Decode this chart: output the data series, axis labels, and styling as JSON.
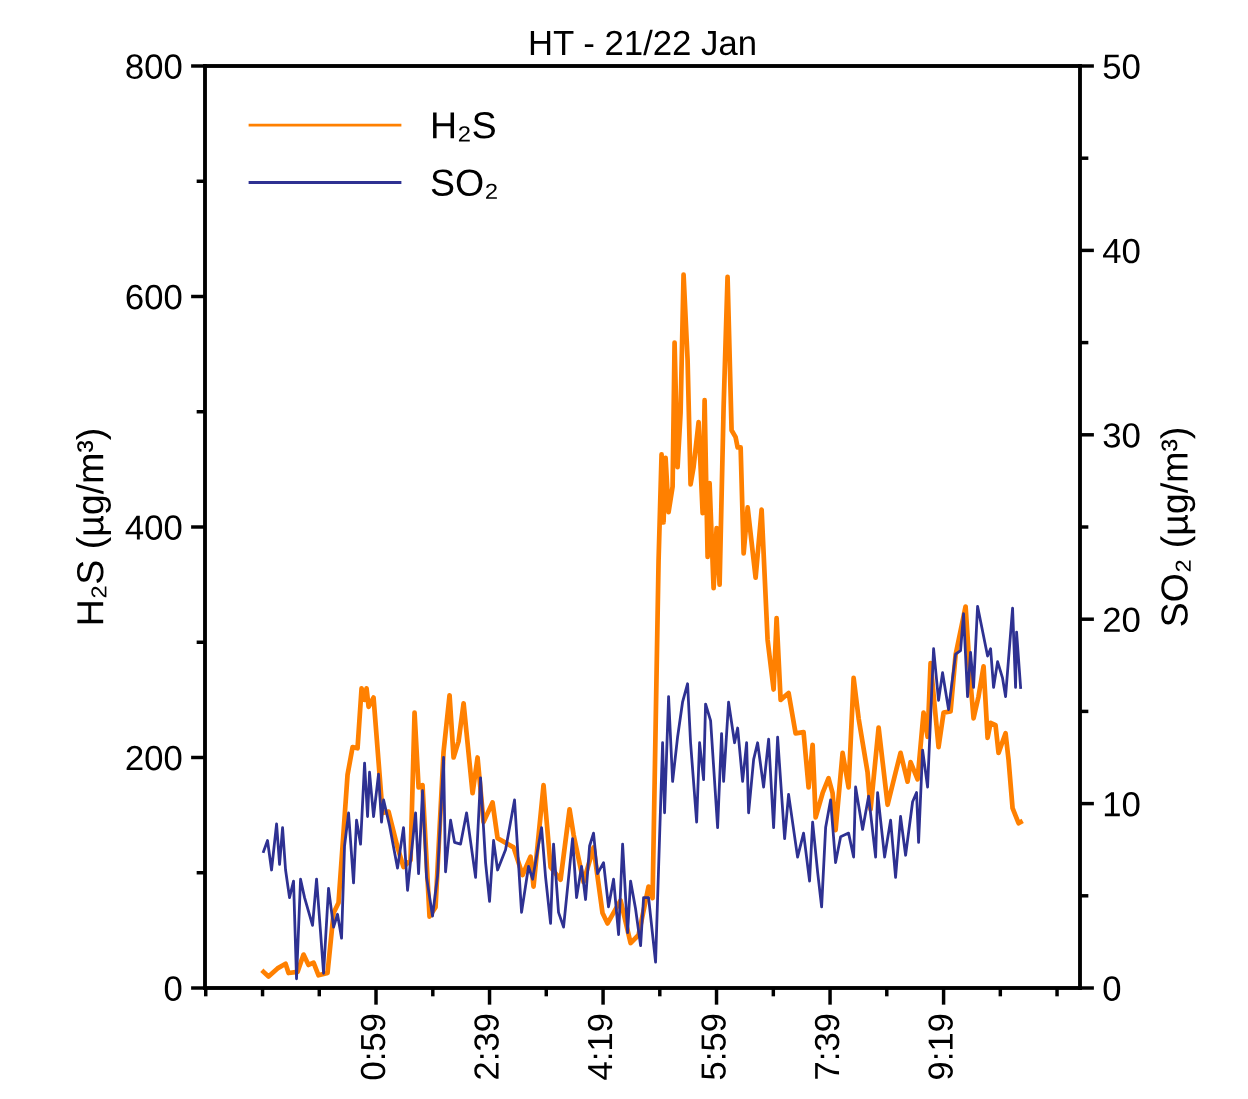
{
  "chart_data": {
    "type": "line",
    "title": "HT - 21/22 Jan",
    "ylabel": "H₂S (µg/m³)",
    "y2label": "SO₂ (µg/m³)",
    "xlim": [
      -1.528,
      11.32
    ],
    "xticks": [
      {
        "value": -1.517,
        "label": null
      },
      {
        "value": -0.683,
        "label": null
      },
      {
        "value": 0.15,
        "label": null
      },
      {
        "value": 0.983,
        "label": "0:59"
      },
      {
        "value": 1.817,
        "label": null
      },
      {
        "value": 2.65,
        "label": "2:39"
      },
      {
        "value": 3.483,
        "label": null
      },
      {
        "value": 4.317,
        "label": "4:19"
      },
      {
        "value": 5.15,
        "label": null
      },
      {
        "value": 5.983,
        "label": "5:59"
      },
      {
        "value": 6.817,
        "label": null
      },
      {
        "value": 7.65,
        "label": "7:39"
      },
      {
        "value": 8.483,
        "label": null
      },
      {
        "value": 9.317,
        "label": "9:19"
      },
      {
        "value": 10.15,
        "label": null
      },
      {
        "value": 10.983,
        "label": null
      }
    ],
    "ylim": [
      0,
      800
    ],
    "yticks": [
      0,
      {
        "value": 100,
        "label": null
      },
      200,
      {
        "value": 300,
        "label": null
      },
      400,
      {
        "value": 500,
        "label": null
      },
      600,
      {
        "value": 700,
        "label": null
      },
      800
    ],
    "y2lim": [
      0,
      50
    ],
    "y2ticks": [
      0,
      {
        "value": 5,
        "label": null
      },
      10,
      {
        "value": 15,
        "label": null
      },
      20,
      {
        "value": 25,
        "label": null
      },
      30,
      {
        "value": 35,
        "label": null
      },
      40,
      {
        "value": 45,
        "label": null
      },
      50
    ],
    "grid": false,
    "legend": "top left",
    "marker": "none",
    "line_style": "solid",
    "series": [
      {
        "name": "H₂S",
        "color": "#ff8000",
        "x": [
          -0.668,
          -0.595,
          -0.463,
          -0.345,
          -0.301,
          -0.169,
          -0.081,
          -0.008,
          0.066,
          0.139,
          0.271,
          0.36,
          0.433,
          0.506,
          0.565,
          0.639,
          0.712,
          0.771,
          0.815,
          0.844,
          0.874,
          0.947,
          1.079,
          1.167,
          1.299,
          1.387,
          1.49,
          1.549,
          1.608,
          1.666,
          1.769,
          1.857,
          1.975,
          2.063,
          2.122,
          2.195,
          2.269,
          2.401,
          2.474,
          2.562,
          2.694,
          2.768,
          2.856,
          3.003,
          3.135,
          3.252,
          3.296,
          3.443,
          3.546,
          3.693,
          3.825,
          3.884,
          4.03,
          4.177,
          4.309,
          4.383,
          4.574,
          4.721,
          4.838,
          4.985,
          5.044,
          5.132,
          5.176,
          5.205,
          5.235,
          5.279,
          5.338,
          5.367,
          5.411,
          5.455,
          5.499,
          5.558,
          5.602,
          5.646,
          5.72,
          5.779,
          5.808,
          5.852,
          5.881,
          5.94,
          5.984,
          6.028,
          6.087,
          6.145,
          6.204,
          6.263,
          6.293,
          6.337,
          6.381,
          6.44,
          6.557,
          6.645,
          6.733,
          6.821,
          6.865,
          6.924,
          7.041,
          7.144,
          7.261,
          7.335,
          7.394,
          7.438,
          7.54,
          7.628,
          7.687,
          7.731,
          7.834,
          7.922,
          7.996,
          8.069,
          8.201,
          8.245,
          8.363,
          8.495,
          8.612,
          8.685,
          8.788,
          8.832,
          8.935,
          9.023,
          9.082,
          9.126,
          9.243,
          9.317,
          9.42,
          9.493,
          9.64,
          9.713,
          9.757,
          9.83,
          9.904,
          9.963,
          10.007,
          10.08,
          10.124,
          10.227,
          10.271,
          10.33,
          10.418,
          10.448
        ],
        "values": [
          14,
          10,
          17,
          21,
          13,
          14,
          29,
          20,
          22,
          11,
          13,
          65,
          74,
          135,
          185,
          209,
          208,
          260,
          250,
          260,
          244,
          252,
          152,
          153,
          122,
          105,
          111,
          239,
          174,
          176,
          62,
          70,
          205,
          254,
          200,
          214,
          247,
          169,
          200,
          144,
          161,
          130,
          127,
          122,
          98,
          114,
          88,
          176,
          105,
          94,
          155,
          133,
          92,
          122,
          65,
          56,
          76,
          39,
          46,
          88,
          78,
          371,
          463,
          404,
          460,
          413,
          435,
          560,
          452,
          499,
          619,
          545,
          437,
          452,
          491,
          412,
          510,
          374,
          438,
          347,
          399,
          350,
          504,
          617,
          484,
          478,
          469,
          469,
          377,
          417,
          356,
          415,
          302,
          259,
          321,
          250,
          256,
          221,
          222,
          174,
          211,
          148,
          169,
          182,
          169,
          137,
          204,
          174,
          269,
          234,
          187,
          155,
          226,
          159,
          187,
          204,
          179,
          196,
          181,
          239,
          218,
          282,
          209,
          239,
          240,
          289,
          331,
          265,
          234,
          253,
          279,
          217,
          230,
          228,
          204,
          221,
          198,
          156,
          143,
          144
        ]
      },
      {
        "name": "SO₂",
        "color": "#2e3192",
        "axis": "y2",
        "x": [
          -0.668,
          -0.61,
          -0.551,
          -0.477,
          -0.433,
          -0.389,
          -0.345,
          -0.287,
          -0.228,
          -0.184,
          -0.125,
          -0.066,
          0.051,
          0.11,
          0.169,
          0.213,
          0.286,
          0.36,
          0.418,
          0.477,
          0.521,
          0.58,
          0.653,
          0.697,
          0.756,
          0.815,
          0.859,
          0.888,
          0.947,
          1.02,
          1.064,
          1.094,
          1.182,
          1.299,
          1.387,
          1.446,
          1.564,
          1.608,
          1.666,
          1.725,
          1.813,
          1.887,
          1.975,
          2.004,
          2.078,
          2.136,
          2.224,
          2.313,
          2.445,
          2.518,
          2.592,
          2.65,
          2.709,
          2.768,
          2.885,
          3.017,
          3.12,
          3.223,
          3.282,
          3.414,
          3.473,
          3.546,
          3.59,
          3.663,
          3.737,
          3.869,
          3.928,
          4.001,
          4.06,
          4.119,
          4.177,
          4.236,
          4.324,
          4.397,
          4.471,
          4.545,
          4.604,
          4.677,
          4.721,
          4.794,
          4.868,
          4.912,
          4.985,
          5.088,
          5.191,
          5.22,
          5.279,
          5.338,
          5.411,
          5.484,
          5.558,
          5.602,
          5.691,
          5.734,
          5.793,
          5.822,
          5.896,
          5.999,
          6.057,
          6.087,
          6.16,
          6.248,
          6.293,
          6.366,
          6.425,
          6.454,
          6.528,
          6.586,
          6.674,
          6.748,
          6.821,
          6.88,
          6.983,
          7.041,
          7.173,
          7.261,
          7.349,
          7.394,
          7.467,
          7.526,
          7.585,
          7.658,
          7.731,
          7.805,
          7.922,
          7.996,
          8.025,
          8.128,
          8.216,
          8.319,
          8.348,
          8.451,
          8.539,
          8.612,
          8.685,
          8.759,
          8.862,
          8.92,
          8.95,
          9.009,
          9.082,
          9.17,
          9.243,
          9.302,
          9.39,
          9.493,
          9.566,
          9.61,
          9.669,
          9.713,
          9.757,
          9.816,
          9.963,
          10.007,
          10.051,
          10.11,
          10.183,
          10.227,
          10.33,
          10.374,
          10.389,
          10.448
        ],
        "values": [
          7.4,
          8.0,
          6.4,
          8.9,
          6.7,
          8.7,
          6.4,
          4.9,
          5.8,
          0.5,
          5.9,
          4.9,
          3.4,
          5.9,
          3.0,
          0.8,
          5.4,
          3.3,
          4.0,
          2.7,
          7.7,
          9.5,
          5.7,
          9.1,
          7.8,
          12.2,
          9.3,
          11.7,
          9.3,
          11.6,
          9.0,
          10.2,
          8.8,
          6.5,
          8.7,
          5.3,
          9.5,
          6.2,
          10.7,
          6.0,
          3.9,
          6.1,
          12.5,
          6.3,
          9.1,
          7.9,
          7.8,
          9.5,
          6.0,
          11.4,
          6.8,
          4.7,
          8.0,
          6.4,
          7.5,
          10.2,
          4.1,
          6.6,
          5.9,
          8.7,
          6.0,
          3.5,
          7.8,
          4.1,
          3.3,
          8.1,
          4.9,
          6.6,
          4.8,
          7.7,
          8.4,
          6.2,
          6.8,
          4.4,
          5.9,
          2.9,
          7.8,
          3.0,
          5.8,
          4.3,
          2.3,
          4.9,
          4.9,
          1.4,
          13.3,
          9.5,
          15.8,
          11.2,
          13.6,
          15.5,
          16.5,
          13.3,
          9.0,
          13.3,
          11.3,
          15.4,
          14.5,
          8.7,
          13.8,
          11.2,
          15.5,
          13.3,
          14.1,
          11.2,
          13.3,
          9.5,
          12.4,
          13.3,
          10.9,
          13.5,
          8.7,
          13.6,
          8.1,
          10.5,
          7.1,
          8.4,
          5.8,
          9.0,
          6.3,
          4.4,
          8.7,
          10.2,
          6.8,
          8.2,
          8.4,
          7.1,
          10.9,
          8.6,
          10.4,
          7.1,
          10.6,
          7.1,
          9.1,
          6.0,
          9.3,
          7.2,
          10.1,
          10.6,
          7.9,
          12.9,
          10.9,
          18.4,
          15.6,
          17.1,
          15.1,
          18.1,
          18.3,
          20.3,
          15.8,
          18.2,
          16.3,
          20.7,
          18.0,
          18.4,
          16.3,
          17.7,
          16.8,
          15.8,
          20.6,
          16.3,
          19.3,
          16.3
        ]
      }
    ]
  }
}
